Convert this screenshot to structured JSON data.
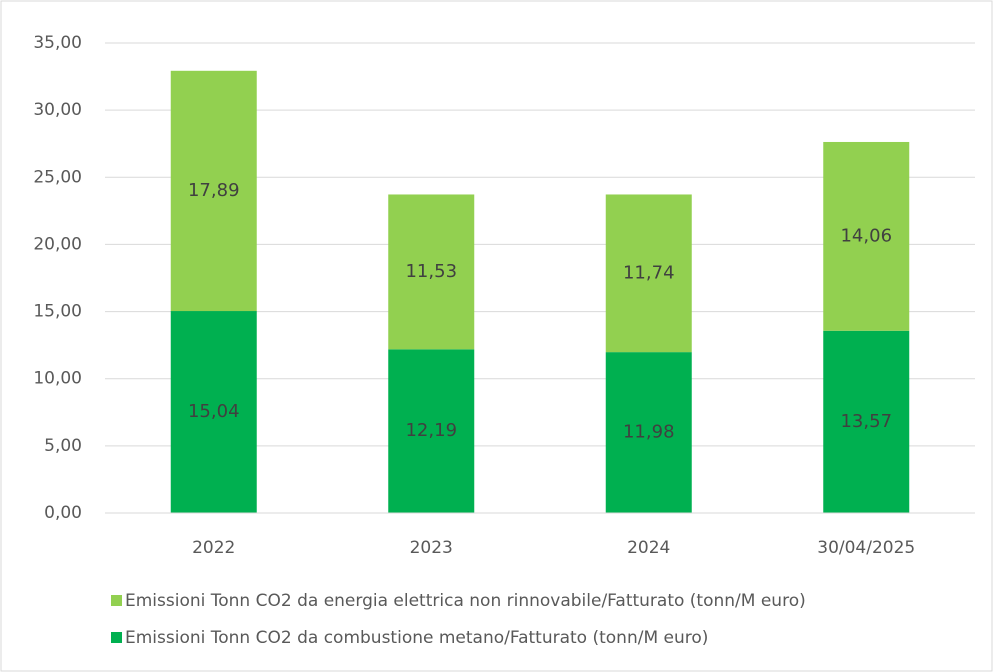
{
  "chart_data": {
    "type": "stacked_bar",
    "categories": [
      "2022",
      "2023",
      "2024",
      "30/04/2025"
    ],
    "series": [
      {
        "name": "Emissioni Tonn CO2 da combustione metano/Fatturato (tonn/M euro)",
        "color": "#00b050",
        "values": [
          15.04,
          12.19,
          11.98,
          13.57
        ],
        "value_labels": [
          "15,04",
          "12,19",
          "11,98",
          "13,57"
        ]
      },
      {
        "name": "Emissioni Tonn CO2 da energia elettrica non rinnovabile/Fatturato (tonn/M euro)",
        "color": "#92d050",
        "values": [
          17.89,
          11.53,
          11.74,
          14.06
        ],
        "value_labels": [
          "17,89",
          "11,53",
          "11,74",
          "14,06"
        ]
      }
    ],
    "ylim": [
      0,
      35
    ],
    "yticks": [
      {
        "value": 0,
        "label": "0,00"
      },
      {
        "value": 5,
        "label": "5,00"
      },
      {
        "value": 10,
        "label": "10,00"
      },
      {
        "value": 15,
        "label": "15,00"
      },
      {
        "value": 20,
        "label": "20,00"
      },
      {
        "value": 25,
        "label": "25,00"
      },
      {
        "value": 30,
        "label": "30,00"
      },
      {
        "value": 35,
        "label": "35,00"
      }
    ],
    "grid": true,
    "legend": "bottom"
  }
}
